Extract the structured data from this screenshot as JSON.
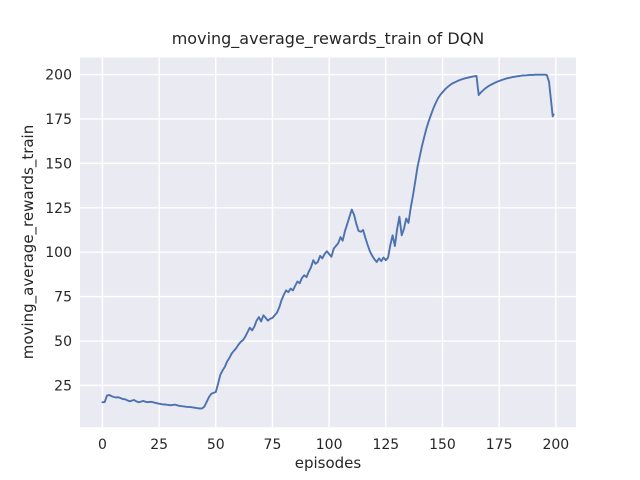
{
  "window": {
    "title": "moving_average_rewards_train of DQN"
  },
  "chart_data": {
    "type": "line",
    "title": "moving_average_rewards_train of DQN",
    "xlabel": "episodes",
    "ylabel": "moving_average_rewards_train",
    "legend": "none",
    "grid": true,
    "style": "seaborn-darkgrid",
    "x_ticks": [
      0,
      25,
      50,
      75,
      100,
      125,
      150,
      175,
      200
    ],
    "y_ticks": [
      25,
      50,
      75,
      100,
      125,
      150,
      175,
      200
    ],
    "xlim": [
      -9.9,
      208.9
    ],
    "ylim": [
      1.5,
      209.6
    ],
    "colors": {
      "line": "#4C72B0",
      "plot_background": "#EAEAF2",
      "gridline": "#FFFFFF",
      "text": "#262626",
      "figure_background": "#FFFFFF"
    },
    "series": [
      {
        "name": "moving_average_rewards_train",
        "points": [
          [
            0,
            15.5
          ],
          [
            1,
            15.7
          ],
          [
            2,
            19.3
          ],
          [
            3,
            19.6
          ],
          [
            4,
            19.0
          ],
          [
            5,
            18.5
          ],
          [
            6,
            18.2
          ],
          [
            7,
            18.4
          ],
          [
            8,
            17.9
          ],
          [
            9,
            17.4
          ],
          [
            10,
            17.2
          ],
          [
            11,
            16.6
          ],
          [
            12,
            16.1
          ],
          [
            13,
            16.5
          ],
          [
            14,
            16.8
          ],
          [
            15,
            16.0
          ],
          [
            16,
            15.5
          ],
          [
            17,
            15.9
          ],
          [
            18,
            16.3
          ],
          [
            19,
            15.8
          ],
          [
            20,
            15.6
          ],
          [
            21,
            15.8
          ],
          [
            22,
            15.7
          ],
          [
            23,
            15.3
          ],
          [
            24,
            15.0
          ],
          [
            25,
            14.7
          ],
          [
            26,
            14.5
          ],
          [
            27,
            14.3
          ],
          [
            28,
            14.2
          ],
          [
            29,
            14.0
          ],
          [
            30,
            13.9
          ],
          [
            31,
            14.0
          ],
          [
            32,
            14.2
          ],
          [
            33,
            13.8
          ],
          [
            34,
            13.5
          ],
          [
            35,
            13.3
          ],
          [
            36,
            13.2
          ],
          [
            37,
            13.0
          ],
          [
            38,
            12.9
          ],
          [
            39,
            12.8
          ],
          [
            40,
            12.6
          ],
          [
            41,
            12.4
          ],
          [
            42,
            12.2
          ],
          [
            43,
            12.0
          ],
          [
            44,
            12.1
          ],
          [
            45,
            13.2
          ],
          [
            46,
            15.8
          ],
          [
            47,
            18.5
          ],
          [
            48,
            20.3
          ],
          [
            49,
            20.8
          ],
          [
            50,
            21.3
          ],
          [
            51,
            26.0
          ],
          [
            52,
            31.0
          ],
          [
            53,
            33.5
          ],
          [
            54,
            35.5
          ],
          [
            55,
            38.5
          ],
          [
            56,
            40.5
          ],
          [
            57,
            43.0
          ],
          [
            58,
            44.5
          ],
          [
            59,
            46.0
          ],
          [
            60,
            48.0
          ],
          [
            61,
            49.5
          ],
          [
            62,
            50.5
          ],
          [
            63,
            52.5
          ],
          [
            64,
            55.0
          ],
          [
            65,
            57.5
          ],
          [
            66,
            56.0
          ],
          [
            67,
            58.0
          ],
          [
            68,
            61.5
          ],
          [
            69,
            63.5
          ],
          [
            70,
            61.0
          ],
          [
            71,
            64.5
          ],
          [
            72,
            63.0
          ],
          [
            73,
            61.5
          ],
          [
            74,
            62.5
          ],
          [
            75,
            63.0
          ],
          [
            76,
            64.5
          ],
          [
            77,
            66.0
          ],
          [
            78,
            69.0
          ],
          [
            79,
            73.0
          ],
          [
            80,
            76.0
          ],
          [
            81,
            78.5
          ],
          [
            82,
            77.5
          ],
          [
            83,
            79.5
          ],
          [
            84,
            78.5
          ],
          [
            85,
            81.0
          ],
          [
            86,
            83.5
          ],
          [
            87,
            82.5
          ],
          [
            88,
            85.5
          ],
          [
            89,
            87.0
          ],
          [
            90,
            86.0
          ],
          [
            91,
            89.0
          ],
          [
            92,
            91.5
          ],
          [
            93,
            95.5
          ],
          [
            94,
            93.5
          ],
          [
            95,
            94.5
          ],
          [
            96,
            98.0
          ],
          [
            97,
            96.5
          ],
          [
            98,
            99.0
          ],
          [
            99,
            100.5
          ],
          [
            100,
            99.0
          ],
          [
            101,
            97.5
          ],
          [
            102,
            102.0
          ],
          [
            103,
            103.5
          ],
          [
            104,
            105.0
          ],
          [
            105,
            108.5
          ],
          [
            106,
            106.5
          ],
          [
            107,
            112.0
          ],
          [
            108,
            116.0
          ],
          [
            109,
            120.0
          ],
          [
            110,
            124.0
          ],
          [
            111,
            121.0
          ],
          [
            112,
            116.0
          ],
          [
            113,
            112.0
          ],
          [
            114,
            111.5
          ],
          [
            115,
            112.5
          ],
          [
            116,
            108.0
          ],
          [
            117,
            104.0
          ],
          [
            118,
            100.5
          ],
          [
            119,
            98.0
          ],
          [
            120,
            96.0
          ],
          [
            121,
            94.5
          ],
          [
            122,
            96.5
          ],
          [
            123,
            95.0
          ],
          [
            124,
            97.0
          ],
          [
            125,
            95.5
          ],
          [
            126,
            97.0
          ],
          [
            127,
            104.0
          ],
          [
            128,
            109.5
          ],
          [
            129,
            103.5
          ],
          [
            130,
            113.0
          ],
          [
            131,
            120.0
          ],
          [
            132,
            109.5
          ],
          [
            133,
            113.0
          ],
          [
            134,
            119.0
          ],
          [
            135,
            116.5
          ],
          [
            136,
            125.0
          ],
          [
            137,
            132.0
          ],
          [
            138,
            140.0
          ],
          [
            139,
            148.0
          ],
          [
            140,
            154.0
          ],
          [
            141,
            160.0
          ],
          [
            142,
            165.0
          ],
          [
            143,
            170.0
          ],
          [
            144,
            174.0
          ],
          [
            145,
            177.5
          ],
          [
            146,
            181.0
          ],
          [
            147,
            184.0
          ],
          [
            148,
            186.5
          ],
          [
            149,
            188.5
          ],
          [
            150,
            190.0
          ],
          [
            151,
            191.5
          ],
          [
            152,
            192.7
          ],
          [
            153,
            193.8
          ],
          [
            154,
            194.7
          ],
          [
            155,
            195.4
          ],
          [
            156,
            196.0
          ],
          [
            157,
            196.6
          ],
          [
            158,
            197.1
          ],
          [
            159,
            197.5
          ],
          [
            160,
            197.9
          ],
          [
            161,
            198.2
          ],
          [
            162,
            198.5
          ],
          [
            163,
            198.8
          ],
          [
            164,
            199.0
          ],
          [
            165,
            199.2
          ],
          [
            166,
            188.5
          ],
          [
            167,
            190.0
          ],
          [
            168,
            191.2
          ],
          [
            169,
            192.3
          ],
          [
            170,
            193.2
          ],
          [
            171,
            194.0
          ],
          [
            172,
            194.7
          ],
          [
            173,
            195.3
          ],
          [
            174,
            195.9
          ],
          [
            175,
            196.4
          ],
          [
            176,
            196.9
          ],
          [
            177,
            197.3
          ],
          [
            178,
            197.7
          ],
          [
            179,
            198.0
          ],
          [
            180,
            198.3
          ],
          [
            181,
            198.6
          ],
          [
            182,
            198.8
          ],
          [
            183,
            199.0
          ],
          [
            184,
            199.2
          ],
          [
            185,
            199.4
          ],
          [
            186,
            199.5
          ],
          [
            187,
            199.6
          ],
          [
            188,
            199.7
          ],
          [
            189,
            199.8
          ],
          [
            190,
            199.8
          ],
          [
            191,
            199.9
          ],
          [
            192,
            199.9
          ],
          [
            193,
            199.9
          ],
          [
            194,
            199.9
          ],
          [
            195,
            199.9
          ],
          [
            196,
            199.8
          ],
          [
            197,
            196.0
          ],
          [
            198,
            184.0
          ],
          [
            198.6,
            176.5
          ],
          [
            199,
            177.5
          ]
        ]
      }
    ]
  }
}
